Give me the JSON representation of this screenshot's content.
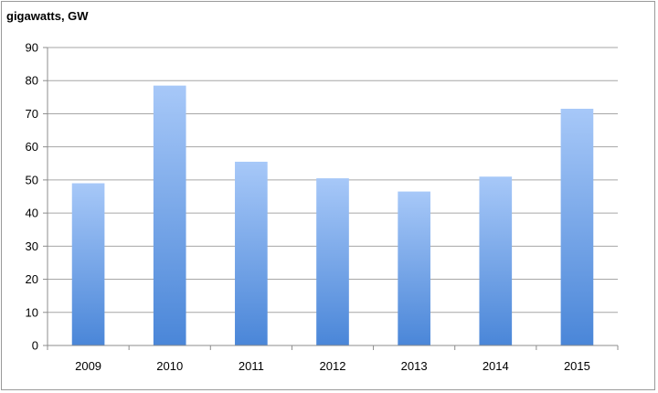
{
  "chart_data": {
    "type": "bar",
    "title": "",
    "unit_label": "gigawatts, GW",
    "xlabel": "",
    "ylabel": "",
    "categories": [
      "2009",
      "2010",
      "2011",
      "2012",
      "2013",
      "2014",
      "2015"
    ],
    "values": [
      49,
      78.5,
      55.5,
      50.5,
      46.5,
      51,
      71.5
    ],
    "ylim": [
      0,
      90
    ],
    "yticks": [
      "0",
      "10",
      "20",
      "30",
      "40",
      "50",
      "60",
      "70",
      "80",
      "90"
    ],
    "grid": true,
    "legend": "none",
    "colors": {
      "bar_top": "#a7c8f8",
      "bar_bottom": "#4a86d8",
      "grid": "#a6a6a6",
      "axis": "#8c8c8c"
    }
  }
}
